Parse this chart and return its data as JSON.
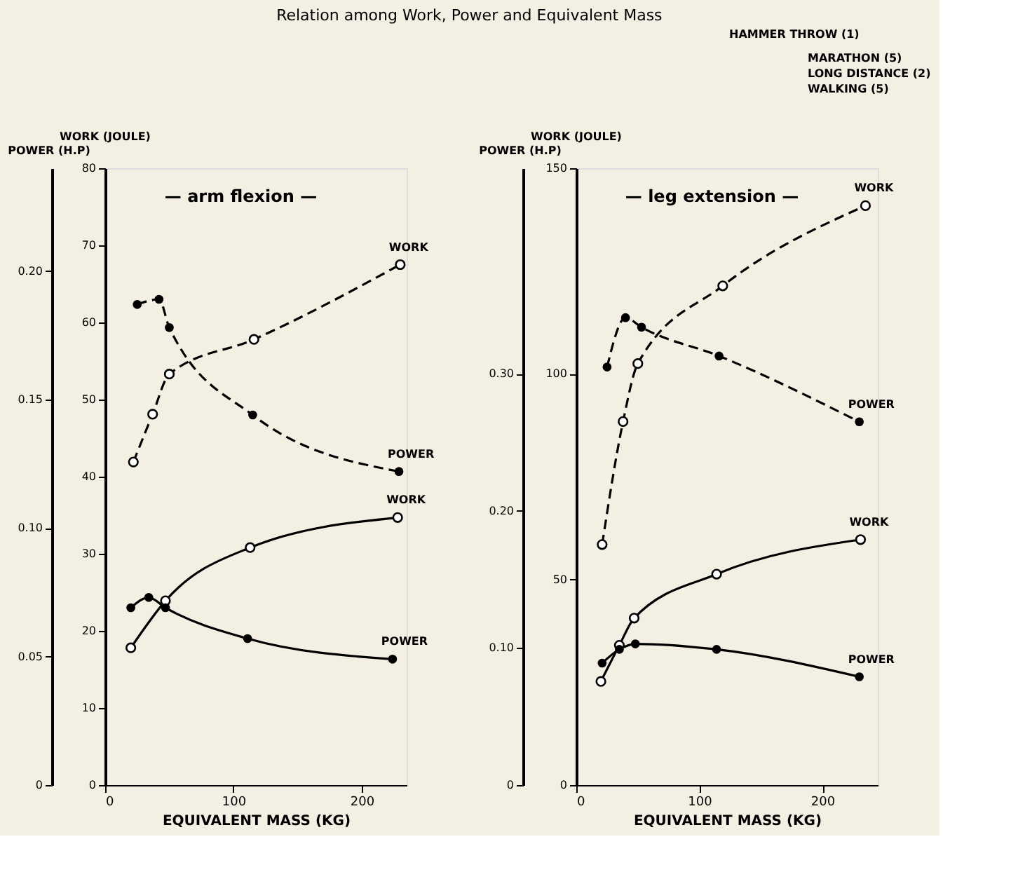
{
  "chart_data": [
    {
      "type": "line",
      "title": "Relation among Work, Power and Equivalent Mass",
      "subtitle": "— arm flexion —",
      "xlabel": "EQUIVALENT MASS (KG)",
      "ylabel": "WORK (JOULE)",
      "y2label": "POWER (H.P)",
      "xlim": [
        0,
        235
      ],
      "xticks": [
        0,
        100,
        200
      ],
      "ylim": [
        0,
        80
      ],
      "yticks": [
        0,
        10,
        20,
        30,
        40,
        50,
        60,
        70,
        80
      ],
      "y2lim": [
        0,
        0.24
      ],
      "y2ticks": [
        0,
        0.05,
        {
          "value": 0.1,
          "label": "0.10"
        },
        0.15,
        {
          "value": 0.2,
          "label": "0.20"
        }
      ],
      "marker": "circle",
      "grid": false,
      "series": [
        {
          "name": "WORK",
          "color": "#000000",
          "line_style": "dashed",
          "x": [
            22,
            37,
            50,
            116,
            230
          ],
          "values": [
            41.9,
            48.1,
            53.3,
            57.8,
            67.5
          ]
        },
        {
          "name": "POWER",
          "color": "#000000",
          "line_style": "dashed",
          "axis": "y2",
          "x": [
            25,
            42,
            50,
            115,
            229
          ],
          "values": [
            0.187,
            0.189,
            0.178,
            0.144,
            0.122
          ]
        },
        {
          "name": "WORK",
          "color": "#000000",
          "line_style": "solid",
          "x": [
            20,
            47,
            113,
            228
          ],
          "values": [
            17.8,
            23.9,
            30.8,
            34.7
          ]
        },
        {
          "name": "POWER",
          "color": "#000000",
          "line_style": "solid",
          "axis": "y2",
          "x": [
            20,
            34,
            47,
            111,
            224
          ],
          "values": [
            0.069,
            0.073,
            0.069,
            0.057,
            0.049
          ]
        }
      ]
    },
    {
      "type": "line",
      "subtitle": "— leg extension —",
      "xlabel": "EQUIVALENT MASS (KG)",
      "ylabel": "WORK (JOULE)",
      "y2label": "POWER (H.P)",
      "xlim": [
        0,
        245
      ],
      "xticks": [
        0,
        100,
        200
      ],
      "ylim": [
        0,
        150
      ],
      "yticks": [
        0,
        50,
        100,
        150
      ],
      "y2lim": [
        0,
        0.45
      ],
      "y2ticks": [
        0,
        {
          "value": 0.1,
          "label": "0.10"
        },
        {
          "value": 0.2,
          "label": "0.20"
        },
        {
          "value": 0.3,
          "label": "0.30"
        }
      ],
      "marker": "circle",
      "grid": false,
      "annotations": [
        "HAMMER THROW (1)",
        "MARATHON (5)",
        "LONG DISTANCE (2)",
        "WALKING (5)"
      ],
      "series": [
        {
          "name": "WORK",
          "color": "#000000",
          "line_style": "dashed",
          "x": [
            21,
            38,
            50,
            119,
            235
          ],
          "values": [
            58.5,
            88.4,
            102.5,
            121.4,
            140.9
          ]
        },
        {
          "name": "POWER",
          "color": "#000000",
          "line_style": "dashed",
          "axis": "y2",
          "x": [
            25,
            40,
            53,
            116,
            230
          ],
          "values": [
            0.305,
            0.341,
            0.334,
            0.313,
            0.265
          ]
        },
        {
          "name": "WORK",
          "color": "#000000",
          "line_style": "solid",
          "x": [
            20,
            35,
            47,
            114,
            231
          ],
          "values": [
            25.2,
            34.0,
            40.6,
            51.3,
            59.7
          ]
        },
        {
          "name": "POWER",
          "color": "#000000",
          "line_style": "solid",
          "axis": "y2",
          "x": [
            21,
            35,
            48,
            114,
            230
          ],
          "values": [
            0.089,
            0.099,
            0.103,
            0.099,
            0.079
          ]
        }
      ]
    }
  ]
}
